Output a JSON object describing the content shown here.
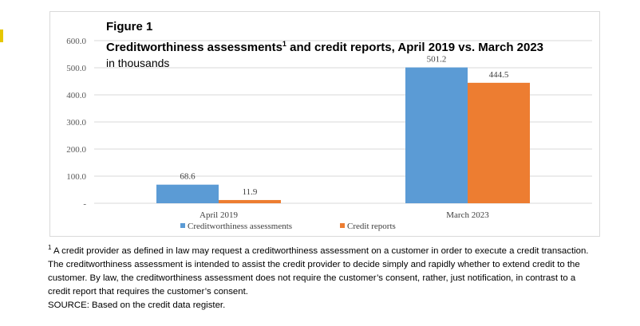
{
  "figure_label": "Figure 1",
  "title_main": "Creditworthiness assessments",
  "title_sup": "1",
  "title_rest": " and credit reports, April 2019 vs. March 2023",
  "subtitle": "in thousands",
  "footnote": {
    "marker": "1",
    "text": " A credit provider as defined in law may request a creditworthiness assessment on a customer in order to execute a credit transaction. The creditworthiness assessment is intended to assist the credit provider to decide simply and rapidly whether to extend credit to the customer. By law, the creditworthiness assessment does not require the customer’s consent, rather, just notification, in contrast to a credit report that requires the customer’s consent.",
    "source": "SOURCE: Based on the credit data register."
  },
  "chart_data": {
    "type": "bar",
    "title": "Creditworthiness assessments1 and credit reports, April 2019 vs. March 2023",
    "subtitle": "in thousands",
    "categories": [
      "April 2019",
      "March 2023"
    ],
    "series": [
      {
        "name": "Creditworthiness assessments",
        "values": [
          68.6,
          501.2
        ],
        "labels": [
          "68.6",
          "501.2"
        ],
        "color": "#5b9bd5"
      },
      {
        "name": "Credit reports",
        "values": [
          11.9,
          444.5
        ],
        "labels": [
          "11.9",
          "444.5"
        ],
        "color": "#ed7d31"
      }
    ],
    "ylim": [
      0,
      600
    ],
    "yticks": [
      0,
      100,
      200,
      300,
      400,
      500,
      600
    ],
    "ytick_labels": [
      "-",
      "100.0",
      "200.0",
      "300.0",
      "400.0",
      "500.0",
      "600.0"
    ],
    "grid": true,
    "legend_position": "bottom"
  }
}
